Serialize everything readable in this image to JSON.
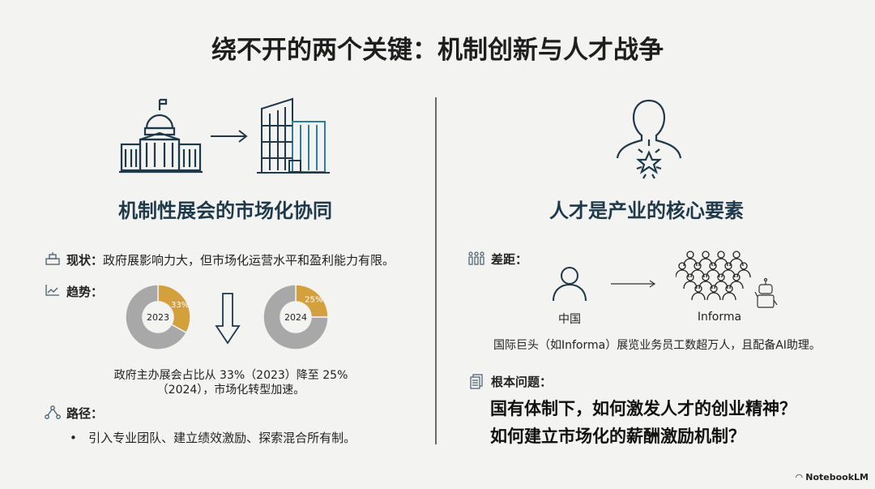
{
  "title": "绕不开的两个关键：机制创新与人才战争",
  "left": {
    "heading": "机制性展会的市场化协同",
    "status_label": "现状：",
    "status_text": "政府展影响力大，但市场化运营水平和盈利能力有限。",
    "trend_label": "趋势：",
    "trend_caption_line1": "政府主办展会占比从 33%（2023）降至 25%",
    "trend_caption_line2": "（2024），市场化转型加速。",
    "path_label": "路径：",
    "path_bullet": "引入专业团队、建立绩效激励、探索混合所有制。"
  },
  "right": {
    "heading": "人才是产业的核心要素",
    "gap_label": "差距：",
    "china_label": "中国",
    "informa_label": "Informa",
    "gap_text": "国际巨头（如Informa）展览业务员工数超万人，且配备AI助理。",
    "root_label": "根本问题：",
    "question1": "国有体制下，如何激发人才的创业精神？",
    "question2": "如何建立市场化的薪酬激励机制？"
  },
  "watermark": "NotebookLM",
  "colors": {
    "accent": "#d4a03c",
    "rest": "#a8a8a8",
    "heading": "#1e3a4a"
  },
  "chart_data": [
    {
      "type": "pie",
      "center_label": "2023",
      "slices": [
        {
          "label": "33%",
          "value": 33,
          "color": "#d4a03c"
        },
        {
          "value": 67,
          "color": "#a8a8a8"
        }
      ]
    },
    {
      "type": "pie",
      "center_label": "2024",
      "slices": [
        {
          "label": "25%",
          "value": 25,
          "color": "#d4a03c"
        },
        {
          "value": 75,
          "color": "#a8a8a8"
        }
      ]
    }
  ]
}
